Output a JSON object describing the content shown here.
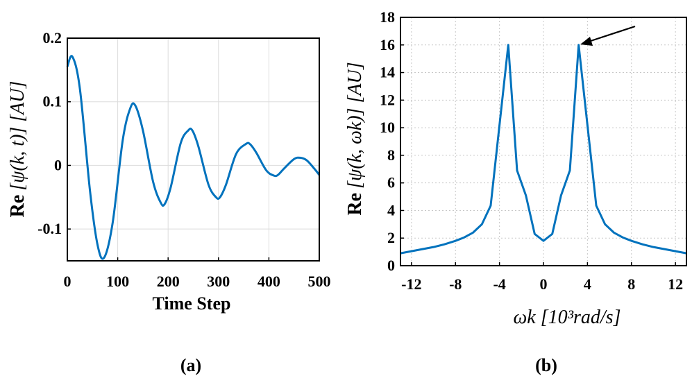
{
  "chart_data": [
    {
      "type": "line",
      "panel_caption": "(a)",
      "xlabel": "Time Step",
      "ylabel_prefix": "Re",
      "ylabel_math": "[ψ(k, t)] [AU]",
      "xlim": [
        0,
        500
      ],
      "ylim": [
        -0.15,
        0.2
      ],
      "xticks": [
        0,
        100,
        200,
        300,
        400,
        500
      ],
      "xtick_labels": [
        "0",
        "100",
        "200",
        "300",
        "400",
        "500"
      ],
      "yticks": [
        -0.1,
        0,
        0.1,
        0.2
      ],
      "ytick_labels": [
        "-0.1",
        "0",
        "0.1",
        "0.2"
      ],
      "grid": true,
      "series": [
        {
          "name": "Re ψ(k,t)",
          "color": "#0072bd",
          "x": [
            0,
            10,
            25,
            45,
            60,
            73,
            90,
            110,
            125,
            135,
            150,
            170,
            185,
            193,
            205,
            225,
            240,
            248,
            260,
            280,
            295,
            303,
            315,
            335,
            355,
            363,
            375,
            395,
            410,
            418,
            430,
            450,
            462,
            475,
            490,
            500
          ],
          "y": [
            0.155,
            0.171,
            0.12,
            -0.04,
            -0.125,
            -0.145,
            -0.09,
            0.04,
            0.09,
            0.094,
            0.055,
            -0.025,
            -0.058,
            -0.061,
            -0.035,
            0.035,
            0.055,
            0.055,
            0.03,
            -0.03,
            -0.05,
            -0.05,
            -0.03,
            0.018,
            0.034,
            0.033,
            0.02,
            -0.008,
            -0.016,
            -0.015,
            -0.005,
            0.01,
            0.012,
            0.008,
            -0.005,
            -0.015
          ]
        }
      ]
    },
    {
      "type": "line",
      "panel_caption": "(b)",
      "xlabel_math": "ωk [10³rad/s]",
      "ylabel_prefix": "Re",
      "ylabel_math": "[ψ(k, ωk)] [AU]",
      "xlim": [
        -13,
        13
      ],
      "ylim": [
        0,
        18
      ],
      "xticks": [
        -12,
        -8,
        -4,
        0,
        4,
        8,
        12
      ],
      "xtick_labels": [
        "-12",
        "-8",
        "-4",
        "0",
        "4",
        "8",
        "12"
      ],
      "yticks": [
        0,
        2,
        4,
        6,
        8,
        10,
        12,
        14,
        16,
        18
      ],
      "ytick_labels": [
        "0",
        "2",
        "4",
        "6",
        "8",
        "10",
        "12",
        "14",
        "16",
        "18"
      ],
      "grid": true,
      "annotation": "arrow pointing to right peak at (3.2, 16)",
      "series": [
        {
          "name": "Re ψ(k,ωk)",
          "color": "#0072bd",
          "x": [
            -13,
            -12,
            -11,
            -10,
            -9,
            -8,
            -7.2,
            -6.4,
            -5.6,
            -4.8,
            -3.2,
            -2.4,
            -1.6,
            -0.8,
            0,
            0.8,
            1.6,
            2.4,
            3.2,
            4.8,
            5.6,
            6.4,
            7.2,
            8,
            9,
            10,
            11,
            12,
            13
          ],
          "y": [
            0.9,
            1.05,
            1.2,
            1.35,
            1.55,
            1.8,
            2.05,
            2.4,
            3.0,
            4.35,
            16.0,
            6.9,
            5.1,
            2.3,
            1.8,
            2.3,
            5.1,
            6.9,
            16.0,
            4.35,
            3.0,
            2.4,
            2.05,
            1.8,
            1.55,
            1.35,
            1.2,
            1.05,
            0.9
          ]
        }
      ]
    }
  ]
}
